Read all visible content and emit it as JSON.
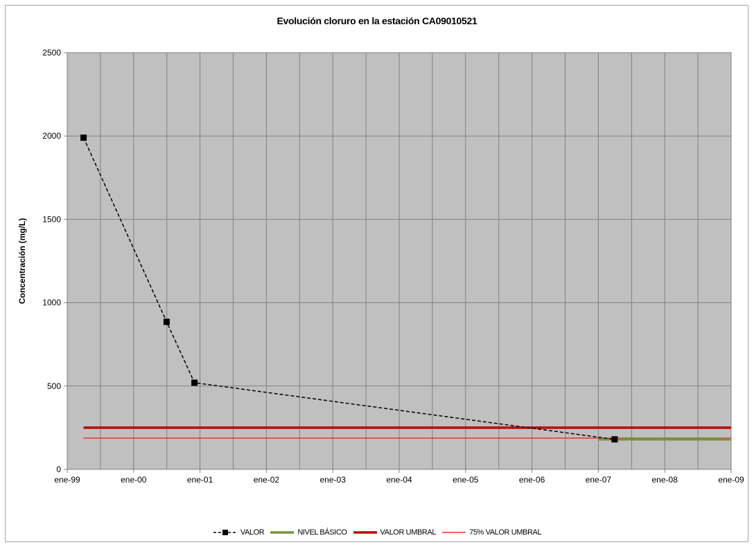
{
  "chart_data": {
    "type": "line",
    "title": "Evolución cloruro en la estación CA09010521",
    "xlabel": "",
    "ylabel": "Concentración (mg/L)",
    "ylim": [
      0,
      2500
    ],
    "yticks": [
      "0",
      "500",
      "1000",
      "1500",
      "2000",
      "2500"
    ],
    "xlim": [
      "1999-01-01",
      "2009-01-01"
    ],
    "xticks": [
      "ene-99",
      "ene-00",
      "ene-01",
      "ene-02",
      "ene-03",
      "ene-04",
      "ene-05",
      "ene-06",
      "ene-07",
      "ene-08",
      "ene-09"
    ],
    "grid": true,
    "plot_background": "#c0c0c0",
    "legend_position": "bottom",
    "series": [
      {
        "name": "VALOR",
        "style": "dashed-black-square-markers",
        "color": "#000000",
        "points": [
          {
            "x": "1999-04-01",
            "y": 1990
          },
          {
            "x": "2000-07-01",
            "y": 885
          },
          {
            "x": "2000-12-01",
            "y": 520
          },
          {
            "x": "2007-04-01",
            "y": 180
          }
        ]
      },
      {
        "name": "NIVEL BÁSICO",
        "style": "solid-thick",
        "color": "#77933c",
        "points": [
          {
            "x": "2007-01-01",
            "y": 180
          },
          {
            "x": "2009-01-01",
            "y": 180
          }
        ]
      },
      {
        "name": "VALOR UMBRAL",
        "style": "solid-thick",
        "color": "#c00000",
        "points": [
          {
            "x": "1999-04-01",
            "y": 250
          },
          {
            "x": "2009-01-01",
            "y": 250
          }
        ]
      },
      {
        "name": "75% VALOR UMBRAL",
        "style": "solid-thin",
        "color": "#ff0000",
        "points": [
          {
            "x": "1999-04-01",
            "y": 187.5
          },
          {
            "x": "2009-01-01",
            "y": 187.5
          }
        ]
      }
    ]
  }
}
